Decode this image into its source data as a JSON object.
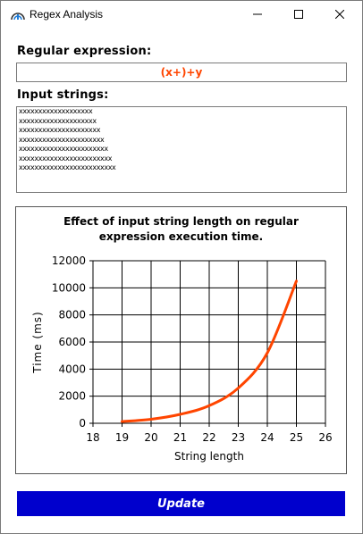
{
  "window": {
    "title": "Regex Analysis"
  },
  "regex": {
    "label": "Regular expression:",
    "value": "(x+)+y",
    "value_color": "#ff4500"
  },
  "inputs": {
    "label": "Input strings:",
    "lines": [
      "xxxxxxxxxxxxxxxxxxx",
      "xxxxxxxxxxxxxxxxxxxx",
      "xxxxxxxxxxxxxxxxxxxxx",
      "xxxxxxxxxxxxxxxxxxxxxx",
      "xxxxxxxxxxxxxxxxxxxxxxx",
      "xxxxxxxxxxxxxxxxxxxxxxxx",
      "xxxxxxxxxxxxxxxxxxxxxxxxx"
    ]
  },
  "chart_data": {
    "type": "line",
    "title_line1": "Effect of input string length on regular",
    "title_line2": "expression execution time.",
    "xlabel": "String length",
    "ylabel": "Time (ms)",
    "xlim": [
      18,
      26
    ],
    "ylim": [
      0,
      12000
    ],
    "xticks": [
      18,
      19,
      20,
      21,
      22,
      23,
      24,
      25,
      26
    ],
    "yticks": [
      0,
      2000,
      4000,
      6000,
      8000,
      10000,
      12000
    ],
    "grid": true,
    "line_color": "#ff4500",
    "series": [
      {
        "x": [
          19,
          20,
          21,
          22,
          23,
          24,
          25
        ],
        "y": [
          130,
          300,
          660,
          1300,
          2600,
          5200,
          10500
        ]
      }
    ]
  },
  "update_button": {
    "label": "Update",
    "color": "#0000cd"
  }
}
